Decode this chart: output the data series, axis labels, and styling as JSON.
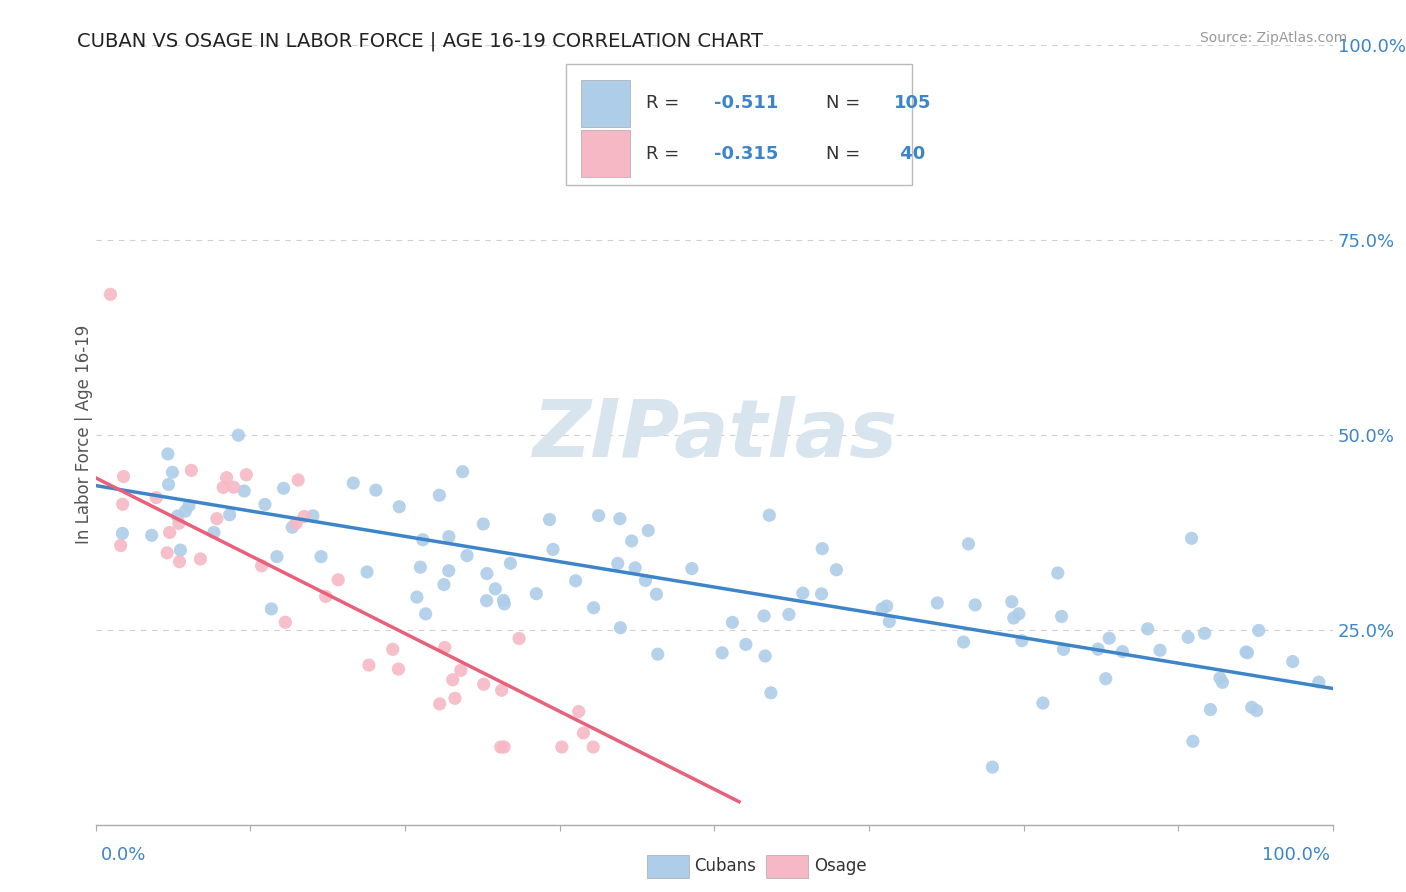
{
  "title": "CUBAN VS OSAGE IN LABOR FORCE | AGE 16-19 CORRELATION CHART",
  "source": "Source: ZipAtlas.com",
  "ylabel": "In Labor Force | Age 16-19",
  "xlim": [
    0.0,
    1.0
  ],
  "ylim": [
    0.0,
    1.0
  ],
  "cubans_R": -0.511,
  "cubans_N": 105,
  "osage_R": -0.315,
  "osage_N": 40,
  "cubans_color": "#aecde8",
  "osage_color": "#f5b8c4",
  "cubans_line_color": "#3d85c8",
  "osage_line_color": "#e8607a",
  "background_color": "#ffffff",
  "grid_color": "#d0d0d0",
  "title_color": "#222222",
  "source_color": "#999999",
  "watermark_color": "#d8e4ee",
  "legend_text_color": "#333333",
  "legend_val_color": "#3d85c8",
  "ytick_color": "#3d85c8",
  "xtick_color": "#3d85c8",
  "cub_line_x0": 0.0,
  "cub_line_y0": 0.435,
  "cub_line_x1": 1.0,
  "cub_line_y1": 0.175,
  "osa_line_x0": 0.0,
  "osa_line_y0": 0.445,
  "osa_line_x1": 0.52,
  "osa_line_y1": 0.03
}
